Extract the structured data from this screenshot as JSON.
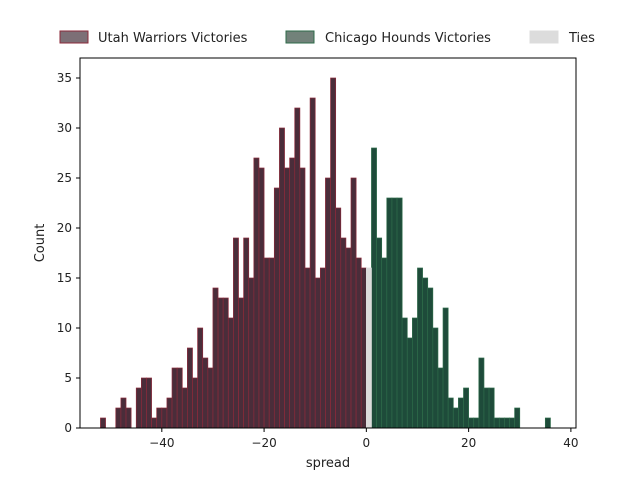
{
  "chart_data": {
    "type": "bar",
    "title": "",
    "xlabel": "spread",
    "ylabel": "Count",
    "xlim": [
      -56,
      41
    ],
    "ylim": [
      0,
      37
    ],
    "bin_width": 1,
    "xticks": [
      -40,
      -20,
      0,
      20,
      40
    ],
    "xtick_labels": [
      "−40",
      "−20",
      "0",
      "20",
      "40"
    ],
    "yticks": [
      0,
      5,
      10,
      15,
      20,
      25,
      30,
      35
    ],
    "ytick_labels": [
      "0",
      "5",
      "10",
      "15",
      "20",
      "25",
      "30",
      "35"
    ],
    "legend_position": "top",
    "series": [
      {
        "name": "Utah Warriors Victories",
        "fill": "#4a2d3a",
        "stroke": "#8b2a3a",
        "legend_fill": "#7d6f76",
        "bins": [
          [
            -52,
            1
          ],
          [
            -49,
            2
          ],
          [
            -48,
            3
          ],
          [
            -47,
            2
          ],
          [
            -45,
            4
          ],
          [
            -44,
            5
          ],
          [
            -43,
            5
          ],
          [
            -42,
            1
          ],
          [
            -41,
            2
          ],
          [
            -40,
            2
          ],
          [
            -39,
            3
          ],
          [
            -38,
            6
          ],
          [
            -37,
            6
          ],
          [
            -36,
            4
          ],
          [
            -35,
            8
          ],
          [
            -34,
            5
          ],
          [
            -33,
            10
          ],
          [
            -32,
            7
          ],
          [
            -31,
            6
          ],
          [
            -30,
            14
          ],
          [
            -29,
            13
          ],
          [
            -28,
            13
          ],
          [
            -27,
            11
          ],
          [
            -26,
            19
          ],
          [
            -25,
            13
          ],
          [
            -24,
            19
          ],
          [
            -23,
            15
          ],
          [
            -22,
            27
          ],
          [
            -21,
            26
          ],
          [
            -20,
            17
          ],
          [
            -19,
            17
          ],
          [
            -18,
            24
          ],
          [
            -17,
            30
          ],
          [
            -16,
            26
          ],
          [
            -15,
            27
          ],
          [
            -14,
            32
          ],
          [
            -13,
            26
          ],
          [
            -12,
            16
          ],
          [
            -11,
            33
          ],
          [
            -10,
            15
          ],
          [
            -9,
            16
          ],
          [
            -8,
            25
          ],
          [
            -7,
            35
          ],
          [
            -6,
            22
          ],
          [
            -5,
            19
          ],
          [
            -4,
            18
          ],
          [
            -3,
            25
          ],
          [
            -2,
            17
          ],
          [
            -1,
            16
          ]
        ]
      },
      {
        "name": "Chicago Hounds Victories",
        "fill": "#1e4b3a",
        "stroke": "#2e6b4a",
        "legend_fill": "#72827a",
        "bins": [
          [
            1,
            28
          ],
          [
            2,
            19
          ],
          [
            3,
            17
          ],
          [
            4,
            23
          ],
          [
            5,
            23
          ],
          [
            6,
            23
          ],
          [
            7,
            11
          ],
          [
            8,
            9
          ],
          [
            9,
            11
          ],
          [
            10,
            16
          ],
          [
            11,
            15
          ],
          [
            12,
            14
          ],
          [
            13,
            10
          ],
          [
            14,
            6
          ],
          [
            15,
            12
          ],
          [
            16,
            3
          ],
          [
            17,
            2
          ],
          [
            18,
            3
          ],
          [
            19,
            4
          ],
          [
            20,
            1
          ],
          [
            21,
            1
          ],
          [
            22,
            7
          ],
          [
            23,
            4
          ],
          [
            24,
            4
          ],
          [
            25,
            1
          ],
          [
            26,
            1
          ],
          [
            27,
            1
          ],
          [
            28,
            1
          ],
          [
            29,
            2
          ],
          [
            35,
            1
          ]
        ]
      },
      {
        "name": "Ties",
        "fill": "#dcdcdc",
        "stroke": "#dcdcdc",
        "legend_fill": "#dcdcdc",
        "bins": [
          [
            0,
            16
          ]
        ]
      }
    ]
  }
}
